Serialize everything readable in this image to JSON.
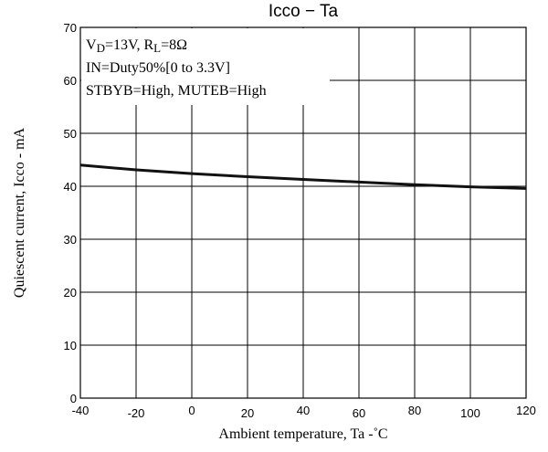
{
  "chart_data": {
    "type": "line",
    "title": "Icco − Ta",
    "x_label": "Ambient temperature, Ta  -˚C",
    "y_label": "Quiescent current, Icco - mA",
    "annotation": [
      [
        {
          "text": "V"
        },
        {
          "text": "D",
          "sub": true
        },
        {
          "text": "=13V, R"
        },
        {
          "text": "L",
          "sub": true
        },
        {
          "text": "=8Ω"
        }
      ],
      [
        {
          "text": "IN=Duty50%[0 to 3.3V]"
        }
      ],
      [
        {
          "text": "STBYB=High, MUTEB=High"
        }
      ]
    ],
    "x": [
      -40,
      -20,
      0,
      20,
      40,
      60,
      80,
      100,
      120
    ],
    "series": [
      {
        "name": "Icco",
        "color": "#111111",
        "values": [
          44.0,
          43.1,
          42.4,
          41.8,
          41.3,
          40.8,
          40.3,
          39.9,
          39.6
        ]
      }
    ],
    "xlim": [
      -40,
      120
    ],
    "xticks": [
      -40,
      -20,
      0,
      20,
      40,
      60,
      80,
      100,
      120
    ],
    "ylim": [
      0,
      70
    ],
    "yticks": [
      0,
      10,
      20,
      30,
      40,
      50,
      60,
      70
    ],
    "grid": true
  }
}
